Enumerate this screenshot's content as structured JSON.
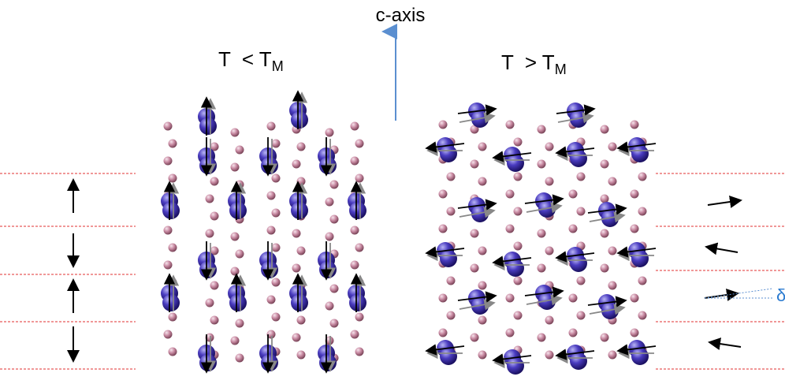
{
  "axis_label": "c-axis",
  "left_panel": {
    "label": "T  < T",
    "subscript": "M"
  },
  "right_panel": {
    "label": "T  > T",
    "subscript": "M"
  },
  "angle_label": "δ"
}
